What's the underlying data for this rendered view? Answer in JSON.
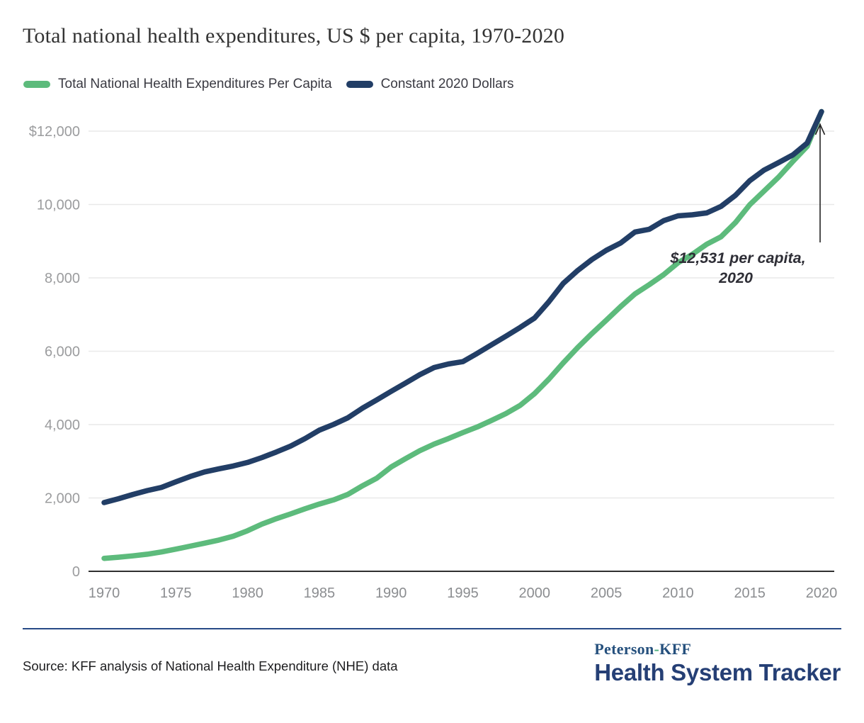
{
  "title": "Total national health expenditures, US $ per capita, 1970-2020",
  "colors": {
    "nominal_green": "#5dbb7c",
    "constant_navy": "#223e66",
    "gridline": "#e9e9e9",
    "axis_line": "#303030",
    "tick_label": "#8b8d90",
    "annotation_text": "#2e2e36",
    "divider_navy": "#274a86",
    "logo_navy": "#253f75",
    "logo_green_hyphen": "#4cae7c"
  },
  "legend": [
    {
      "label": "Total National Health Expenditures Per Capita",
      "color": "#5dbb7c"
    },
    {
      "label": "Constant 2020 Dollars",
      "color": "#223e66"
    }
  ],
  "chart_data": {
    "type": "line",
    "title": "Total national health expenditures, US $ per capita, 1970-2020",
    "xlabel": "",
    "ylabel": "US $ per capita",
    "grid": true,
    "legend_position": "top",
    "ylim": [
      0,
      12600
    ],
    "x": [
      1970,
      1971,
      1972,
      1973,
      1974,
      1975,
      1976,
      1977,
      1978,
      1979,
      1980,
      1981,
      1982,
      1983,
      1984,
      1985,
      1986,
      1987,
      1988,
      1989,
      1990,
      1991,
      1992,
      1993,
      1994,
      1995,
      1996,
      1997,
      1998,
      1999,
      2000,
      2001,
      2002,
      2003,
      2004,
      2005,
      2006,
      2007,
      2008,
      2009,
      2010,
      2011,
      2012,
      2013,
      2014,
      2015,
      2016,
      2017,
      2018,
      2019,
      2020
    ],
    "series": [
      {
        "name": "Total National Health Expenditures Per Capita",
        "color": "#5dbb7c",
        "values": [
          353,
          384,
          422,
          466,
          527,
          605,
          686,
          768,
          853,
          956,
          1108,
          1286,
          1433,
          1566,
          1704,
          1833,
          1947,
          2099,
          2331,
          2537,
          2843,
          3070,
          3287,
          3468,
          3620,
          3781,
          3935,
          4113,
          4299,
          4523,
          4845,
          5240,
          5682,
          6098,
          6481,
          6847,
          7218,
          7561,
          7817,
          8086,
          8412,
          8644,
          8915,
          9121,
          9506,
          9994,
          10370,
          10742,
          11172,
          11582,
          12531
        ]
      },
      {
        "name": "Constant 2020 Dollars",
        "color": "#223e66",
        "values": [
          1875,
          1979,
          2094,
          2200,
          2287,
          2439,
          2585,
          2709,
          2795,
          2872,
          2968,
          3102,
          3252,
          3414,
          3618,
          3847,
          4005,
          4187,
          4447,
          4672,
          4904,
          5130,
          5360,
          5555,
          5652,
          5716,
          5940,
          6175,
          6410,
          6650,
          6905,
          7350,
          7850,
          8200,
          8500,
          8751,
          8950,
          9250,
          9325,
          9560,
          9690,
          9720,
          9770,
          9950,
          10250,
          10650,
          10940,
          11140,
          11350,
          11674,
          12531
        ]
      }
    ],
    "xticks": [
      1970,
      1975,
      1980,
      1985,
      1990,
      1995,
      2000,
      2005,
      2010,
      2015,
      2020
    ],
    "yticks": [
      {
        "value": 12000,
        "label": "$12,000"
      },
      {
        "value": 10000,
        "label": "10,000"
      },
      {
        "value": 8000,
        "label": "8,000"
      },
      {
        "value": 6000,
        "label": "6,000"
      },
      {
        "value": 4000,
        "label": "4,000"
      },
      {
        "value": 2000,
        "label": "2,000"
      },
      {
        "value": 0,
        "label": "0"
      }
    ],
    "annotation": {
      "lines": [
        "$12,531 per capita,",
        "2020"
      ],
      "year": 2020,
      "value": 12531
    }
  },
  "footer": {
    "source": "Source: KFF analysis of National Health Expenditure (NHE) data",
    "logo": {
      "peterson": "Peterson",
      "hyphen": "-",
      "kff": "KFF",
      "main": "Health System Tracker"
    }
  }
}
